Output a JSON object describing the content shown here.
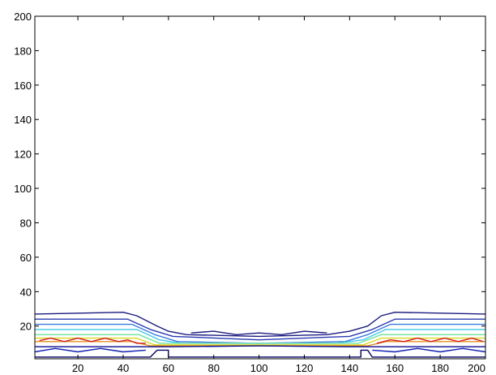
{
  "chart_data": {
    "type": "contour",
    "title": "",
    "xlabel": "",
    "ylabel": "",
    "xlim": [
      1,
      200
    ],
    "ylim": [
      1,
      200
    ],
    "grid": false,
    "legend": "none",
    "xticks": [
      20,
      40,
      60,
      80,
      100,
      120,
      140,
      160,
      180,
      200
    ],
    "yticks": [
      20,
      40,
      60,
      80,
      100,
      120,
      140,
      160,
      180,
      200
    ],
    "xtick_labels": [
      "20",
      "40",
      "60",
      "80",
      "100",
      "120",
      "140",
      "160",
      "180",
      "200"
    ],
    "ytick_labels": [
      "20",
      "40",
      "60",
      "80",
      "100",
      "120",
      "140",
      "160",
      "180",
      "200"
    ],
    "levels": [
      {
        "name": "level-1",
        "color": "#1a1a80",
        "points": [
          [
            1,
            27
          ],
          [
            40,
            28
          ],
          [
            46,
            26
          ],
          [
            55,
            20
          ],
          [
            60,
            17
          ],
          [
            68,
            15
          ],
          [
            100,
            14
          ],
          [
            130,
            15
          ],
          [
            140,
            17
          ],
          [
            148,
            20
          ],
          [
            154,
            26
          ],
          [
            160,
            28
          ],
          [
            200,
            27
          ]
        ]
      },
      {
        "name": "level-2",
        "color": "#2a3ab0",
        "points": [
          [
            1,
            24
          ],
          [
            42,
            24
          ],
          [
            52,
            18
          ],
          [
            62,
            14
          ],
          [
            100,
            12
          ],
          [
            140,
            14
          ],
          [
            150,
            18
          ],
          [
            160,
            24
          ],
          [
            200,
            24
          ]
        ]
      },
      {
        "name": "level-3",
        "color": "#3a7ae0",
        "points": [
          [
            1,
            21
          ],
          [
            44,
            21
          ],
          [
            54,
            15
          ],
          [
            64,
            11
          ],
          [
            100,
            10
          ],
          [
            138,
            11
          ],
          [
            148,
            15
          ],
          [
            158,
            21
          ],
          [
            200,
            21
          ]
        ]
      },
      {
        "name": "level-4",
        "color": "#40c8e8",
        "points": [
          [
            1,
            18
          ],
          [
            46,
            18
          ],
          [
            56,
            12
          ],
          [
            66,
            10
          ],
          [
            134,
            10
          ],
          [
            146,
            12
          ],
          [
            156,
            18
          ],
          [
            200,
            18
          ]
        ]
      },
      {
        "name": "level-5",
        "color": "#70e0a0",
        "points": [
          [
            1,
            15
          ],
          [
            47,
            15
          ],
          [
            56,
            10
          ],
          [
            144,
            10
          ],
          [
            154,
            15
          ],
          [
            200,
            15
          ]
        ]
      },
      {
        "name": "level-6",
        "color": "#d8d820",
        "points": [
          [
            1,
            13
          ],
          [
            46,
            13
          ],
          [
            54,
            9
          ],
          [
            146,
            9
          ],
          [
            154,
            13
          ],
          [
            200,
            13
          ]
        ]
      },
      {
        "name": "level-7",
        "color": "#e89020",
        "points": [
          [
            1,
            11
          ],
          [
            44,
            11
          ],
          [
            52,
            8.5
          ],
          [
            148,
            8.5
          ],
          [
            156,
            11
          ],
          [
            200,
            11
          ]
        ]
      },
      {
        "name": "level-8",
        "color": "#d02020",
        "points": [
          [
            3,
            11.5
          ],
          [
            8,
            13
          ],
          [
            14,
            11
          ],
          [
            20,
            13
          ],
          [
            26,
            11
          ],
          [
            32,
            13
          ],
          [
            38,
            11
          ],
          [
            42,
            12
          ],
          [
            46,
            10
          ],
          [
            50,
            10
          ]
        ]
      },
      {
        "name": "level-9",
        "color": "#d02020",
        "points": [
          [
            152,
            10
          ],
          [
            158,
            12
          ],
          [
            164,
            11
          ],
          [
            170,
            13
          ],
          [
            176,
            11
          ],
          [
            182,
            13
          ],
          [
            188,
            11
          ],
          [
            194,
            13
          ],
          [
            199,
            11
          ]
        ]
      },
      {
        "name": "level-10",
        "color": "#0a0a90",
        "points": [
          [
            1,
            8
          ],
          [
            60,
            8
          ],
          [
            100,
            8.5
          ],
          [
            140,
            8
          ],
          [
            200,
            8
          ]
        ]
      },
      {
        "name": "level-11",
        "color": "#1020b0",
        "points": [
          [
            1,
            5
          ],
          [
            10,
            7
          ],
          [
            20,
            5
          ],
          [
            30,
            7
          ],
          [
            40,
            5
          ],
          [
            50,
            6
          ]
        ]
      },
      {
        "name": "level-12",
        "color": "#1020b0",
        "points": [
          [
            150,
            6
          ],
          [
            160,
            5
          ],
          [
            170,
            7
          ],
          [
            180,
            5
          ],
          [
            190,
            7
          ],
          [
            200,
            5
          ]
        ]
      },
      {
        "name": "level-13",
        "color": "#000060",
        "points": [
          [
            1,
            2
          ],
          [
            52,
            2
          ],
          [
            55,
            6
          ],
          [
            60,
            6
          ],
          [
            60,
            2
          ],
          [
            145,
            2
          ],
          [
            145,
            6
          ],
          [
            148,
            6
          ],
          [
            150,
            2
          ],
          [
            200,
            2
          ]
        ]
      },
      {
        "name": "level-14",
        "color": "#1a1a80",
        "points": [
          [
            70,
            16
          ],
          [
            80,
            17
          ],
          [
            90,
            15
          ],
          [
            100,
            16
          ],
          [
            110,
            15
          ],
          [
            120,
            17
          ],
          [
            130,
            16
          ]
        ]
      }
    ]
  }
}
